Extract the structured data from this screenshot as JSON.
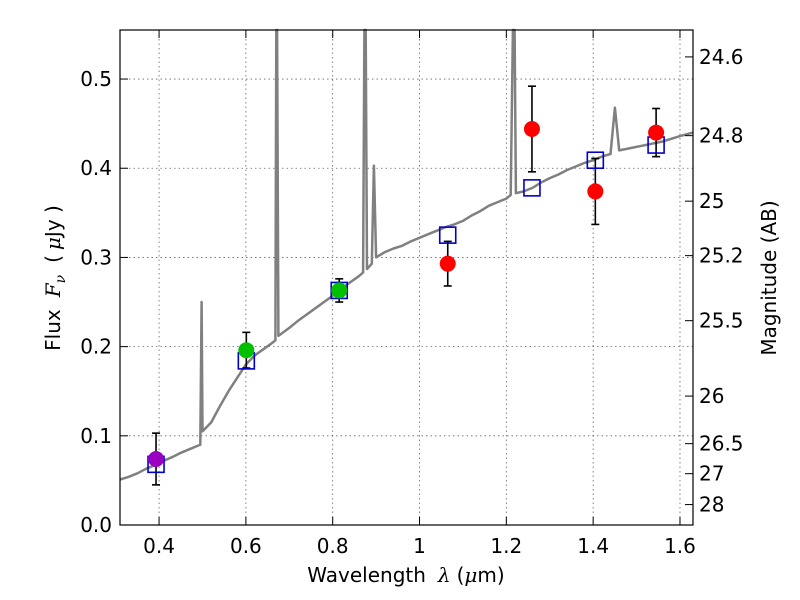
{
  "chart_data": {
    "type": "scatter",
    "xlabel": {
      "prefix": "Wavelength",
      "symbol": "λ",
      "unit_open": "(",
      "unit_mu": "μ",
      "unit_rest": "m)"
    },
    "ylabel": {
      "prefix": "Flux",
      "symbol_main": "F",
      "symbol_sub": "ν",
      "unit_open": "(",
      "unit_mu": "μ",
      "unit_rest": "Jy )"
    },
    "y2label": "Magnitude (AB)",
    "xlim": [
      0.31,
      1.63
    ],
    "ylim": [
      0.0,
      0.555
    ],
    "grid": true,
    "x_ticks": [
      {
        "v": 0.4,
        "label": "0.4"
      },
      {
        "v": 0.6,
        "label": "0.6"
      },
      {
        "v": 0.8,
        "label": "0.8"
      },
      {
        "v": 1.0,
        "label": "1"
      },
      {
        "v": 1.2,
        "label": "1.2"
      },
      {
        "v": 1.4,
        "label": "1.4"
      },
      {
        "v": 1.6,
        "label": "1.6"
      }
    ],
    "y_ticks": [
      {
        "v": 0.0,
        "label": "0.0"
      },
      {
        "v": 0.1,
        "label": "0.1"
      },
      {
        "v": 0.2,
        "label": "0.2"
      },
      {
        "v": 0.3,
        "label": "0.3"
      },
      {
        "v": 0.4,
        "label": "0.4"
      },
      {
        "v": 0.5,
        "label": "0.5"
      }
    ],
    "mag_ticks": [
      {
        "mag": 24.6,
        "label": "24.6"
      },
      {
        "mag": 24.8,
        "label": "24.8"
      },
      {
        "mag": 25.0,
        "label": "25"
      },
      {
        "mag": 25.2,
        "label": "25.2"
      },
      {
        "mag": 25.5,
        "label": "25.5"
      },
      {
        "mag": 26.0,
        "label": "26"
      },
      {
        "mag": 26.5,
        "label": "26.5"
      },
      {
        "mag": 27.0,
        "label": "27"
      },
      {
        "mag": 28.0,
        "label": "28"
      }
    ],
    "series": [
      {
        "name": "observed-purple",
        "marker": "circle",
        "color": "#9a00c0",
        "points": [
          {
            "x": 0.393,
            "y": 0.074,
            "err": 0.029
          }
        ]
      },
      {
        "name": "observed-green",
        "marker": "circle",
        "color": "#00c000",
        "points": [
          {
            "x": 0.601,
            "y": 0.196,
            "err": 0.02
          },
          {
            "x": 0.815,
            "y": 0.263,
            "err": 0.013
          }
        ]
      },
      {
        "name": "observed-red",
        "marker": "circle",
        "color": "#ff0000",
        "points": [
          {
            "x": 1.065,
            "y": 0.293,
            "err": 0.025
          },
          {
            "x": 1.259,
            "y": 0.444,
            "err": 0.048
          },
          {
            "x": 1.405,
            "y": 0.374,
            "err": 0.037
          },
          {
            "x": 1.545,
            "y": 0.44,
            "err": 0.027
          }
        ]
      },
      {
        "name": "model-bandpass",
        "marker": "square",
        "color": "#0000cc",
        "points": [
          {
            "x": 0.393,
            "y": 0.068
          },
          {
            "x": 0.601,
            "y": 0.184
          },
          {
            "x": 0.815,
            "y": 0.263
          },
          {
            "x": 1.065,
            "y": 0.325
          },
          {
            "x": 1.259,
            "y": 0.378
          },
          {
            "x": 1.405,
            "y": 0.409
          },
          {
            "x": 1.545,
            "y": 0.426
          }
        ]
      },
      {
        "name": "model-spectrum",
        "type": "line",
        "color": "#808080",
        "points": [
          [
            0.31,
            0.051
          ],
          [
            0.33,
            0.054
          ],
          [
            0.35,
            0.058
          ],
          [
            0.37,
            0.063
          ],
          [
            0.39,
            0.067
          ],
          [
            0.41,
            0.072
          ],
          [
            0.43,
            0.076
          ],
          [
            0.45,
            0.081
          ],
          [
            0.47,
            0.085
          ],
          [
            0.49,
            0.089
          ],
          [
            0.495,
            0.09
          ],
          [
            0.498,
            0.25
          ],
          [
            0.5,
            0.105
          ],
          [
            0.52,
            0.115
          ],
          [
            0.54,
            0.133
          ],
          [
            0.56,
            0.15
          ],
          [
            0.58,
            0.165
          ],
          [
            0.6,
            0.18
          ],
          [
            0.62,
            0.19
          ],
          [
            0.64,
            0.197
          ],
          [
            0.66,
            0.204
          ],
          [
            0.668,
            0.207
          ],
          [
            0.67,
            0.555
          ],
          [
            0.672,
            0.555
          ],
          [
            0.675,
            0.212
          ],
          [
            0.7,
            0.221
          ],
          [
            0.72,
            0.229
          ],
          [
            0.74,
            0.236
          ],
          [
            0.76,
            0.243
          ],
          [
            0.78,
            0.25
          ],
          [
            0.8,
            0.257
          ],
          [
            0.82,
            0.265
          ],
          [
            0.84,
            0.272
          ],
          [
            0.86,
            0.279
          ],
          [
            0.87,
            0.283
          ],
          [
            0.873,
            0.555
          ],
          [
            0.876,
            0.555
          ],
          [
            0.879,
            0.287
          ],
          [
            0.89,
            0.293
          ],
          [
            0.895,
            0.403
          ],
          [
            0.9,
            0.3
          ],
          [
            0.92,
            0.306
          ],
          [
            0.94,
            0.31
          ],
          [
            0.96,
            0.313
          ],
          [
            0.98,
            0.318
          ],
          [
            1.0,
            0.322
          ],
          [
            1.02,
            0.326
          ],
          [
            1.04,
            0.33
          ],
          [
            1.06,
            0.334
          ],
          [
            1.08,
            0.337
          ],
          [
            1.1,
            0.341
          ],
          [
            1.12,
            0.347
          ],
          [
            1.14,
            0.352
          ],
          [
            1.16,
            0.358
          ],
          [
            1.18,
            0.362
          ],
          [
            1.2,
            0.366
          ],
          [
            1.21,
            0.37
          ],
          [
            1.215,
            0.555
          ],
          [
            1.219,
            0.555
          ],
          [
            1.222,
            0.372
          ],
          [
            1.24,
            0.374
          ],
          [
            1.26,
            0.378
          ],
          [
            1.28,
            0.384
          ],
          [
            1.3,
            0.389
          ],
          [
            1.32,
            0.393
          ],
          [
            1.34,
            0.398
          ],
          [
            1.36,
            0.402
          ],
          [
            1.38,
            0.406
          ],
          [
            1.4,
            0.409
          ],
          [
            1.42,
            0.413
          ],
          [
            1.44,
            0.416
          ],
          [
            1.45,
            0.468
          ],
          [
            1.46,
            0.42
          ],
          [
            1.48,
            0.422
          ],
          [
            1.5,
            0.424
          ],
          [
            1.52,
            0.426
          ],
          [
            1.54,
            0.428
          ],
          [
            1.56,
            0.43
          ],
          [
            1.58,
            0.433
          ],
          [
            1.6,
            0.436
          ],
          [
            1.63,
            0.44
          ]
        ]
      }
    ]
  }
}
